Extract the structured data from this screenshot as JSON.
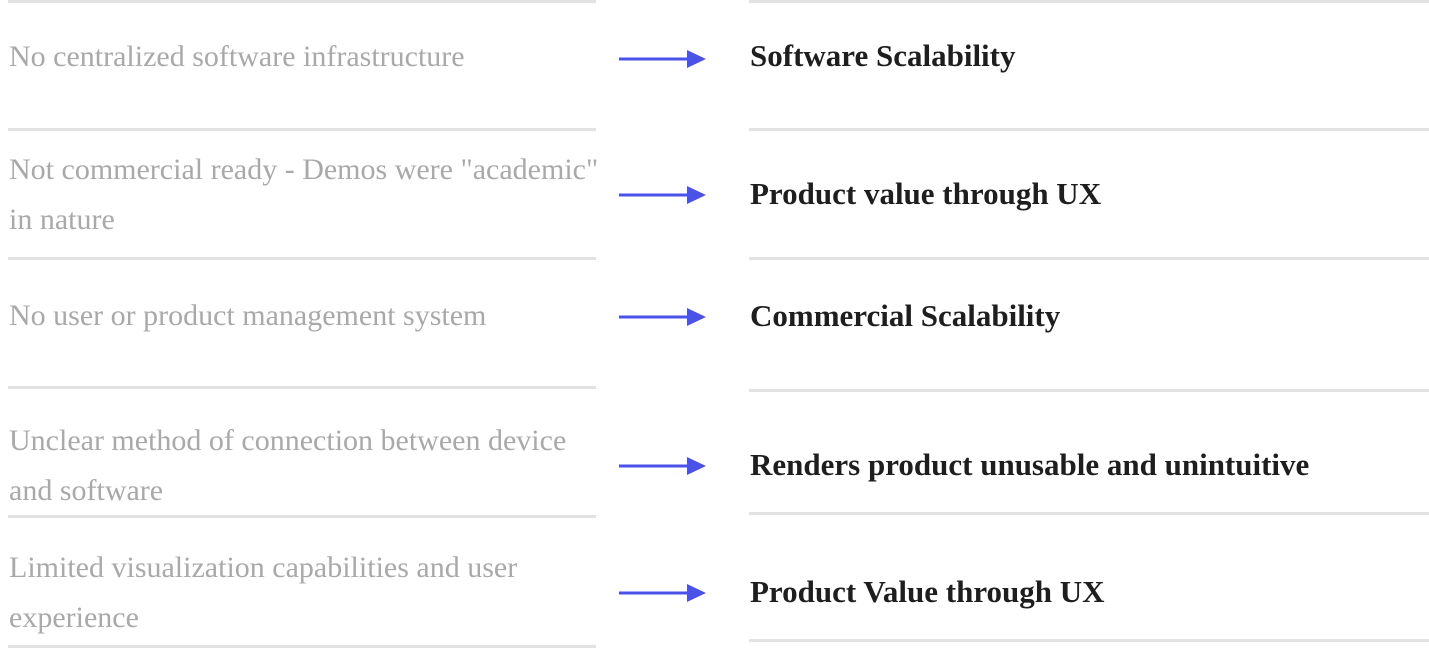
{
  "accent_color": "#4a52e8",
  "rows": [
    {
      "problem": "No centralized software infrastructure",
      "outcome": "Software Scalability",
      "arrow_icon": "arrow-right-icon"
    },
    {
      "problem": "Not commercial ready - Demos were \"academic\" in nature",
      "outcome": "Product value through UX",
      "arrow_icon": "arrow-right-icon"
    },
    {
      "problem": "No user or product management system",
      "outcome": "Commercial Scalability",
      "arrow_icon": "arrow-right-icon"
    },
    {
      "problem": "Unclear method of connection between device and software",
      "outcome": "Renders product unusable and unintuitive",
      "arrow_icon": "arrow-right-icon"
    },
    {
      "problem": "Limited visualization capabilities and user experience",
      "outcome": "Product Value through UX",
      "arrow_icon": "arrow-right-icon"
    }
  ]
}
